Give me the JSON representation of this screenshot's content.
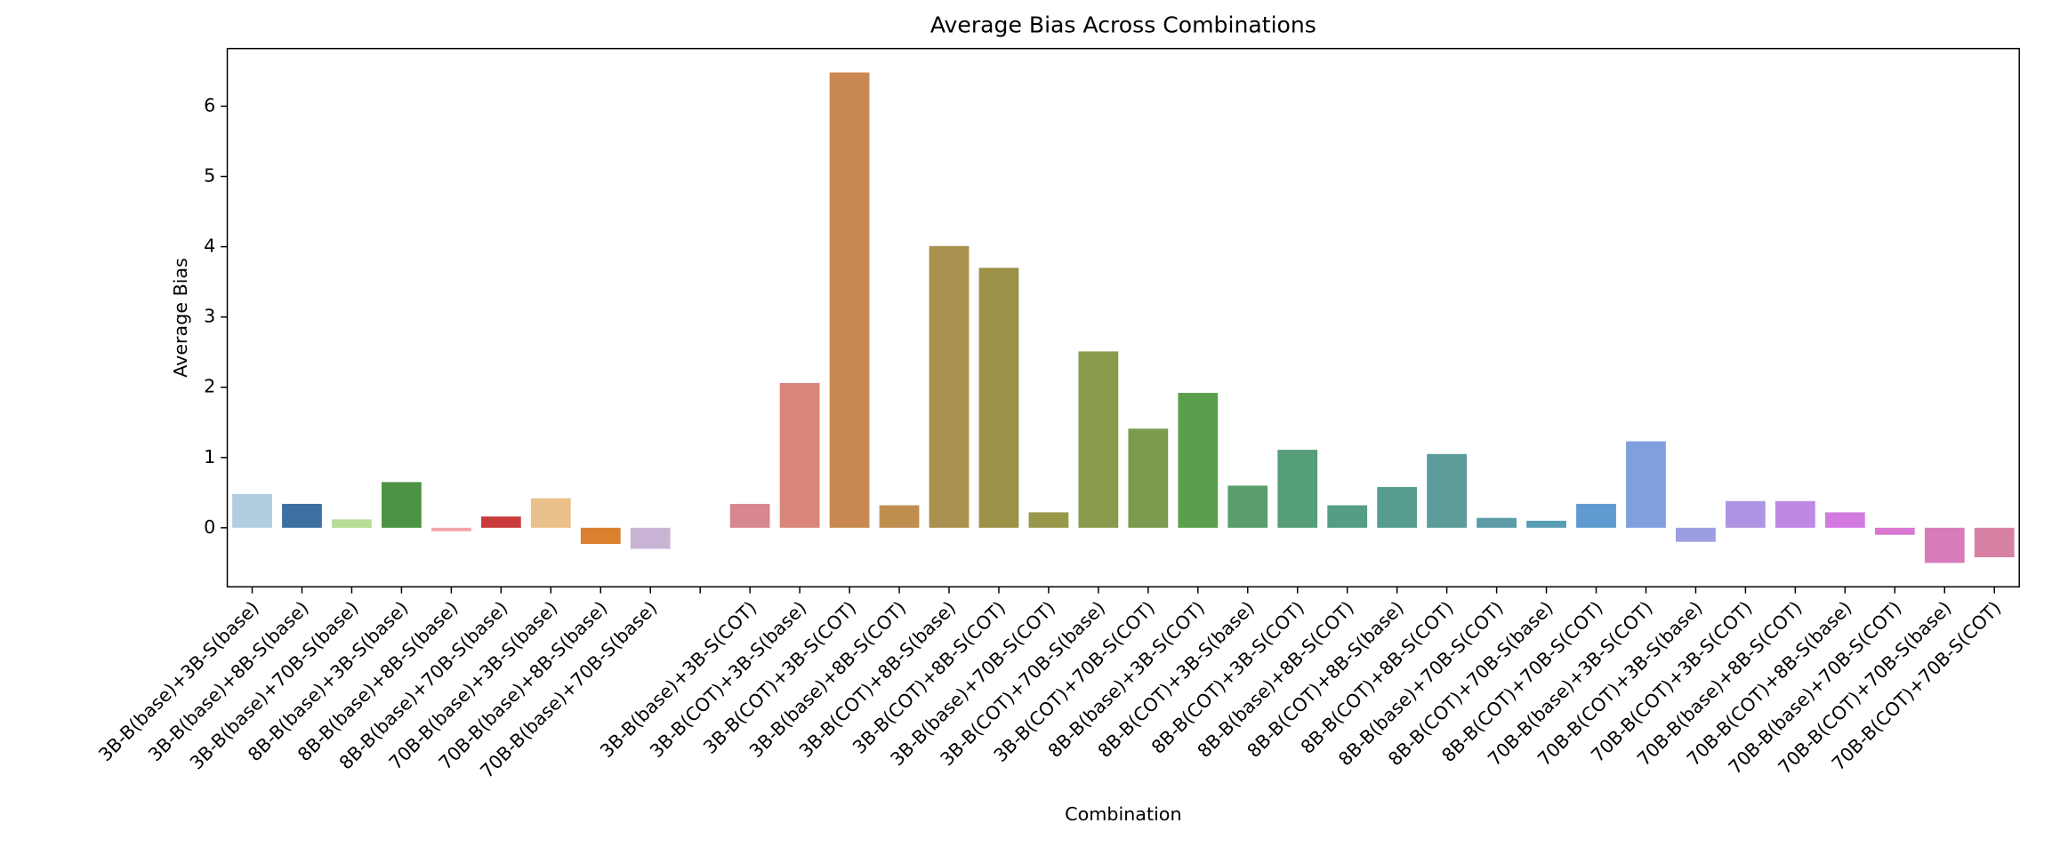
{
  "chart_data": {
    "type": "bar",
    "title": "Average Bias Across Combinations",
    "x_label": "Combination",
    "y_label": "Average Bias",
    "categories": [
      "3B-B(base)+3B-S(base)",
      "3B-B(base)+8B-S(base)",
      "3B-B(base)+70B-S(base)",
      "8B-B(base)+3B-S(base)",
      "8B-B(base)+8B-S(base)",
      "8B-B(base)+70B-S(base)",
      "70B-B(base)+3B-S(base)",
      "70B-B(base)+8B-S(base)",
      "70B-B(base)+70B-S(base)",
      null,
      "3B-B(base)+3B-S(COT)",
      "3B-B(COT)+3B-S(base)",
      "3B-B(COT)+3B-S(COT)",
      "3B-B(base)+8B-S(COT)",
      "3B-B(COT)+8B-S(base)",
      "3B-B(COT)+8B-S(COT)",
      "3B-B(base)+70B-S(COT)",
      "3B-B(COT)+70B-S(base)",
      "3B-B(COT)+70B-S(COT)",
      "8B-B(base)+3B-S(COT)",
      "8B-B(COT)+3B-S(base)",
      "8B-B(COT)+3B-S(COT)",
      "8B-B(base)+8B-S(COT)",
      "8B-B(COT)+8B-S(base)",
      "8B-B(COT)+8B-S(COT)",
      "8B-B(base)+70B-S(COT)",
      "8B-B(COT)+70B-S(base)",
      "8B-B(COT)+70B-S(COT)",
      "70B-B(base)+3B-S(COT)",
      "70B-B(COT)+3B-S(base)",
      "70B-B(COT)+3B-S(COT)",
      "70B-B(base)+8B-S(COT)",
      "70B-B(COT)+8B-S(base)",
      "70B-B(base)+70B-S(COT)",
      "70B-B(COT)+70B-S(base)",
      "70B-B(COT)+70B-S(COT)"
    ],
    "values": [
      0.48,
      0.34,
      0.12,
      0.65,
      -0.05,
      0.16,
      0.42,
      -0.23,
      -0.3,
      null,
      0.34,
      2.06,
      6.48,
      0.32,
      4.01,
      3.7,
      0.22,
      2.51,
      1.41,
      1.92,
      0.6,
      1.11,
      0.32,
      0.58,
      1.05,
      0.14,
      0.1,
      0.34,
      1.23,
      -0.2,
      0.38,
      0.38,
      0.22,
      -0.1,
      -0.5,
      -0.42
    ],
    "colors": [
      "#b3cde0",
      "#3e6fa1",
      "#b8dd96",
      "#4d9344",
      "#f4a5a9",
      "#c83b3b",
      "#eac08a",
      "#d9812e",
      "#c9b4d6",
      null,
      "#d8868f",
      "#d98579",
      "#c98851",
      "#c08f4f",
      "#aa9150",
      "#9c9248",
      "#979849",
      "#899a4c",
      "#7b9b4e",
      "#5aa04c",
      "#5a9e6d",
      "#559e79",
      "#559d84",
      "#579d8f",
      "#5b9c9b",
      "#5b9ca7",
      "#5b9db5",
      "#5f9bd0",
      "#7f9fdf",
      "#9d9de2",
      "#ae95e3",
      "#be88e3",
      "#d27ae0",
      "#d878d0",
      "#d77bb9",
      "#d680a3"
    ],
    "ylim": [
      -0.84,
      6.82
    ],
    "yticks": [
      0,
      1,
      2,
      3,
      4,
      5,
      6
    ]
  }
}
